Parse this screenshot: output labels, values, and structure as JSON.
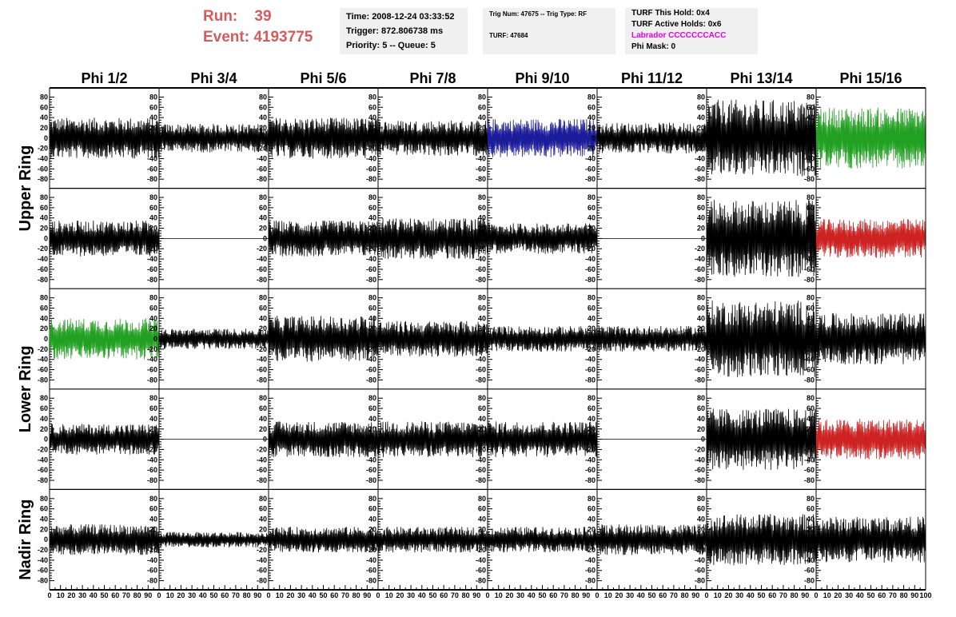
{
  "header": {
    "run_label": "Run:",
    "run_value": "39",
    "event_label": "Event:",
    "event_value": "4193775",
    "time": "Time: 2008-12-24 03:33:52",
    "trigger": "Trigger: 872.806738 ms",
    "priority": "Priority: 5 -- Queue: 5",
    "trig_num": "Trig Num: 47675 -- Trig Type: RF",
    "turf": "TURF: 47684",
    "turf_this_hold": "TURF This Hold: 0x4",
    "turf_active_holds": "TURF Active Holds: 0x6",
    "labrador": "Labrador CCCCCCCACC",
    "phi_mask": "Phi Mask: 0"
  },
  "colors": {
    "run_text": "#d45b5b",
    "labrador_text": "#e800e8",
    "trace_default": "#000000",
    "trace_blue": "#1c1c9a",
    "trace_green": "#22a022",
    "trace_red": "#cc2222"
  },
  "chart_data": {
    "type": "line",
    "columns": [
      "Phi 1/2",
      "Phi 3/4",
      "Phi 5/6",
      "Phi 7/8",
      "Phi 9/10",
      "Phi 11/12",
      "Phi 13/14",
      "Phi 15/16"
    ],
    "ring_labels": [
      "Upper Ring",
      "Lower Ring",
      "Nadir Ring"
    ],
    "ring_row_spans": [
      [
        0,
        1
      ],
      [
        2,
        3
      ],
      [
        4,
        4
      ]
    ],
    "xlim": [
      0,
      100
    ],
    "ylim": [
      -90,
      90
    ],
    "x_tick_labels": [
      "0",
      "10",
      "20",
      "30",
      "40",
      "50",
      "60",
      "70",
      "80",
      "90",
      "100"
    ],
    "y_tick_labels": [
      "80",
      "60",
      "40",
      "20",
      "0",
      "-20",
      "-40",
      "-60",
      "-80"
    ],
    "grid": false,
    "rows": [
      {
        "amplitudes": [
          40,
          28,
          40,
          35,
          38,
          30,
          75,
          60
        ],
        "colors": [
          "trace_default",
          "trace_default",
          "trace_default",
          "trace_default",
          "trace_blue",
          "trace_default",
          "trace_default",
          "trace_green"
        ]
      },
      {
        "amplitudes": [
          35,
          0,
          35,
          40,
          30,
          0,
          75,
          38
        ],
        "colors": [
          "trace_default",
          "trace_default",
          "trace_default",
          "trace_default",
          "trace_default",
          "trace_default",
          "trace_default",
          "trace_red"
        ]
      },
      {
        "amplitudes": [
          40,
          20,
          45,
          35,
          25,
          25,
          75,
          50
        ],
        "colors": [
          "trace_green",
          "trace_default",
          "trace_default",
          "trace_default",
          "trace_default",
          "trace_default",
          "trace_default",
          "trace_default"
        ]
      },
      {
        "amplitudes": [
          30,
          0,
          35,
          35,
          35,
          0,
          60,
          40
        ],
        "colors": [
          "trace_default",
          "trace_default",
          "trace_default",
          "trace_default",
          "trace_default",
          "trace_default",
          "trace_default",
          "trace_red"
        ]
      },
      {
        "amplitudes": [
          30,
          15,
          25,
          25,
          25,
          30,
          50,
          45
        ],
        "colors": [
          "trace_default",
          "trace_default",
          "trace_default",
          "trace_default",
          "trace_default",
          "trace_default",
          "trace_default",
          "trace_default"
        ]
      }
    ]
  }
}
